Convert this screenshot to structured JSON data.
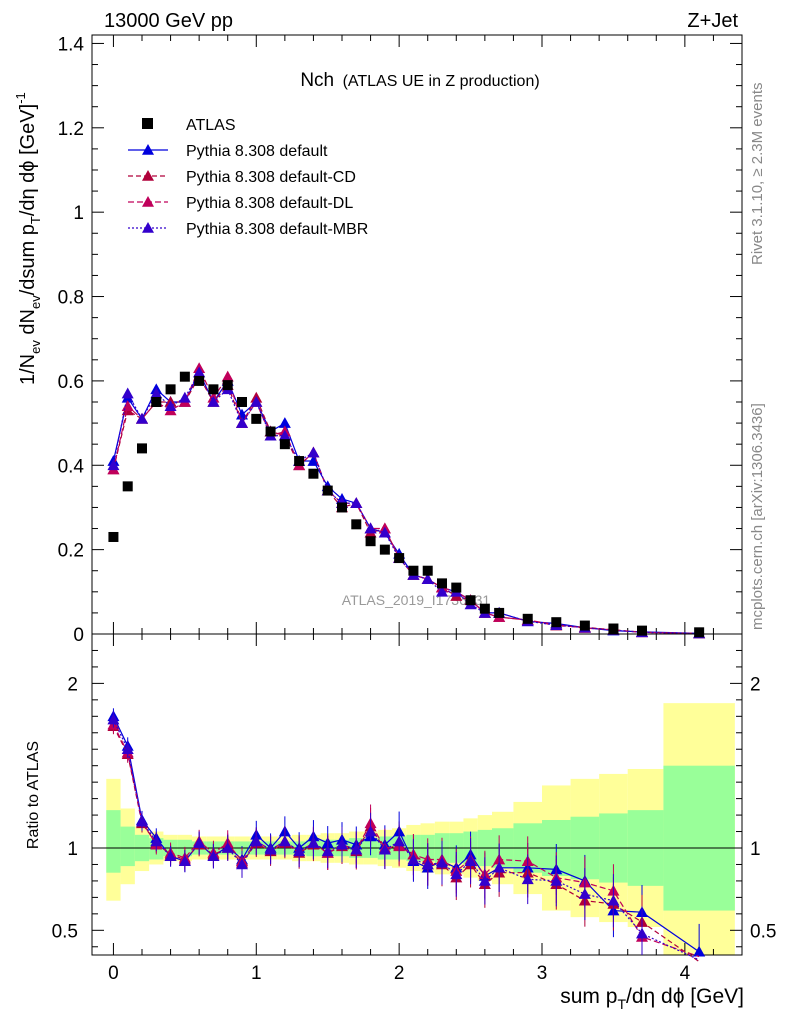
{
  "header": {
    "left": "13000 GeV pp",
    "right": "Z+Jet"
  },
  "side_labels": {
    "rivet": "Rivet 3.1.10, ≥ 2.3M events",
    "mcplots": "mcplots.cern.ch [arXiv:1306.3436]"
  },
  "analysis_tag": "ATLAS_2019_I1736531",
  "plot_title": {
    "main": "Nch",
    "sub": "(ATLAS UE in Z production)"
  },
  "axes": {
    "xlabel": "sum p_T/dη dϕ [GeV]",
    "ylabel_top": "1/N_ev dN_ev/dsum p_T/dη dϕ [GeV]^-1",
    "ylabel_bottom": "Ratio to ATLAS"
  },
  "colors": {
    "data": "#000000",
    "default": "#0000dd",
    "cd": "#b0003a",
    "dl": "#c0005a",
    "mbr": "#3300cc",
    "band_inner": "#99ff99",
    "band_outer": "#ffff99"
  },
  "chart_data": [
    {
      "type": "scatter",
      "panel": "main",
      "xlim": [
        -0.15,
        4.4
      ],
      "ylim": [
        0,
        1.42
      ],
      "x_ticks": [
        0,
        1,
        2,
        3,
        4
      ],
      "y_ticks": [
        0,
        0.2,
        0.4,
        0.6,
        0.8,
        1,
        1.2,
        1.4
      ],
      "y_tick_labels": [
        "0",
        "0.2",
        "0.4",
        "0.6",
        "0.8",
        "1",
        "1.2",
        "1.4"
      ],
      "legend": [
        "ATLAS",
        "Pythia 8.308 default",
        "Pythia 8.308 default-CD",
        "Pythia 8.308 default-DL",
        "Pythia 8.308 default-MBR"
      ],
      "legend_position": "top-left",
      "x": [
        0.0,
        0.1,
        0.2,
        0.3,
        0.4,
        0.5,
        0.6,
        0.7,
        0.8,
        0.9,
        1.0,
        1.1,
        1.2,
        1.3,
        1.4,
        1.5,
        1.6,
        1.7,
        1.8,
        1.9,
        2.0,
        2.1,
        2.2,
        2.3,
        2.4,
        2.5,
        2.6,
        2.7,
        2.9,
        3.1,
        3.3,
        3.5,
        3.7,
        4.1
      ],
      "series": [
        {
          "name": "ATLAS",
          "values": [
            0.23,
            0.35,
            0.44,
            0.55,
            0.58,
            0.61,
            0.6,
            0.58,
            0.59,
            0.55,
            0.51,
            0.48,
            0.45,
            0.41,
            0.38,
            0.34,
            0.3,
            0.26,
            0.22,
            0.2,
            0.18,
            0.15,
            0.15,
            0.12,
            0.11,
            0.08,
            0.06,
            0.05,
            0.036,
            0.028,
            0.02,
            0.013,
            0.008,
            0.004
          ]
        },
        {
          "name": "Pythia 8.308 default",
          "values": [
            0.41,
            0.56,
            0.51,
            0.58,
            0.55,
            0.55,
            0.62,
            0.55,
            0.6,
            0.52,
            0.55,
            0.48,
            0.5,
            0.41,
            0.41,
            0.35,
            0.32,
            0.31,
            0.25,
            0.24,
            0.19,
            0.14,
            0.13,
            0.11,
            0.1,
            0.08,
            0.05,
            0.05,
            0.03,
            0.025,
            0.015,
            0.008,
            0.005,
            0.0015
          ]
        },
        {
          "name": "Pythia 8.308 default-CD",
          "values": [
            0.39,
            0.53,
            0.51,
            0.55,
            0.55,
            0.55,
            0.61,
            0.55,
            0.59,
            0.5,
            0.56,
            0.48,
            0.47,
            0.4,
            0.43,
            0.34,
            0.3,
            0.31,
            0.24,
            0.25,
            0.18,
            0.14,
            0.13,
            0.11,
            0.09,
            0.08,
            0.05,
            0.04,
            0.033,
            0.02,
            0.016,
            0.01,
            0.004,
            0.0013
          ]
        },
        {
          "name": "Pythia 8.308 default-DL",
          "values": [
            0.39,
            0.54,
            0.51,
            0.55,
            0.53,
            0.55,
            0.63,
            0.56,
            0.61,
            0.5,
            0.55,
            0.47,
            0.48,
            0.4,
            0.43,
            0.34,
            0.31,
            0.31,
            0.25,
            0.25,
            0.18,
            0.14,
            0.13,
            0.11,
            0.1,
            0.08,
            0.05,
            0.04,
            0.033,
            0.022,
            0.014,
            0.01,
            0.004,
            0.0012
          ]
        },
        {
          "name": "Pythia 8.308 default-MBR",
          "values": [
            0.4,
            0.57,
            0.51,
            0.57,
            0.54,
            0.56,
            0.62,
            0.55,
            0.58,
            0.5,
            0.55,
            0.47,
            0.47,
            0.41,
            0.43,
            0.34,
            0.31,
            0.31,
            0.25,
            0.24,
            0.18,
            0.14,
            0.13,
            0.1,
            0.1,
            0.07,
            0.05,
            0.05,
            0.03,
            0.021,
            0.015,
            0.009,
            0.004,
            0.0013
          ]
        }
      ]
    },
    {
      "type": "scatter",
      "panel": "ratio",
      "xlim": [
        -0.15,
        4.4
      ],
      "ylim": [
        0.35,
        2.3
      ],
      "x_ticks": [
        0,
        1,
        2,
        3,
        4
      ],
      "y_ticks": [
        0.5,
        1,
        2
      ],
      "y_tick_labels": [
        "0.5",
        "1",
        "2"
      ],
      "reference_line": 1,
      "x": [
        0.0,
        0.1,
        0.2,
        0.3,
        0.4,
        0.5,
        0.6,
        0.7,
        0.8,
        0.9,
        1.0,
        1.1,
        1.2,
        1.3,
        1.4,
        1.5,
        1.6,
        1.7,
        1.8,
        1.9,
        2.0,
        2.1,
        2.2,
        2.3,
        2.4,
        2.5,
        2.6,
        2.7,
        2.9,
        3.1,
        3.3,
        3.5,
        3.7,
        4.1
      ],
      "bands": {
        "edges": [
          -0.05,
          0.05,
          0.15,
          0.25,
          0.35,
          0.45,
          0.55,
          0.65,
          0.75,
          0.85,
          0.95,
          1.05,
          1.15,
          1.25,
          1.35,
          1.45,
          1.55,
          1.65,
          1.75,
          1.85,
          1.95,
          2.05,
          2.15,
          2.25,
          2.35,
          2.45,
          2.55,
          2.65,
          2.8,
          3.0,
          3.2,
          3.4,
          3.6,
          3.85,
          4.35
        ],
        "inner_low": [
          0.85,
          0.89,
          0.92,
          0.93,
          0.95,
          0.95,
          0.96,
          0.96,
          0.96,
          0.96,
          0.96,
          0.96,
          0.96,
          0.96,
          0.95,
          0.95,
          0.95,
          0.94,
          0.94,
          0.93,
          0.93,
          0.92,
          0.92,
          0.91,
          0.91,
          0.9,
          0.89,
          0.88,
          0.85,
          0.83,
          0.81,
          0.79,
          0.77,
          0.62
        ],
        "inner_high": [
          1.23,
          1.13,
          1.08,
          1.06,
          1.05,
          1.05,
          1.04,
          1.04,
          1.04,
          1.04,
          1.04,
          1.04,
          1.04,
          1.04,
          1.05,
          1.05,
          1.05,
          1.06,
          1.06,
          1.07,
          1.07,
          1.08,
          1.08,
          1.09,
          1.09,
          1.1,
          1.11,
          1.12,
          1.15,
          1.17,
          1.19,
          1.21,
          1.23,
          1.5
        ],
        "outer_low": [
          0.68,
          0.78,
          0.86,
          0.9,
          0.92,
          0.92,
          0.93,
          0.93,
          0.93,
          0.93,
          0.93,
          0.93,
          0.93,
          0.92,
          0.92,
          0.91,
          0.91,
          0.9,
          0.9,
          0.89,
          0.88,
          0.86,
          0.85,
          0.84,
          0.84,
          0.82,
          0.8,
          0.78,
          0.72,
          0.62,
          0.58,
          0.55,
          0.52,
          0.35
        ],
        "outer_high": [
          1.42,
          1.24,
          1.13,
          1.1,
          1.08,
          1.08,
          1.07,
          1.07,
          1.07,
          1.07,
          1.07,
          1.07,
          1.07,
          1.08,
          1.08,
          1.09,
          1.09,
          1.1,
          1.1,
          1.11,
          1.12,
          1.14,
          1.15,
          1.16,
          1.16,
          1.18,
          1.2,
          1.22,
          1.28,
          1.38,
          1.42,
          1.45,
          1.48,
          1.88
        ]
      },
      "series": [
        {
          "name": "Pythia 8.308 default",
          "values": [
            1.8,
            1.62,
            1.17,
            1.06,
            0.95,
            0.92,
            1.03,
            0.95,
            1.01,
            0.93,
            1.08,
            1.0,
            1.1,
            1.0,
            1.07,
            1.03,
            1.05,
            1.02,
            1.07,
            1.02,
            1.1,
            0.92,
            0.88,
            0.92,
            0.88,
            0.96,
            0.83,
            0.88,
            0.88,
            0.87,
            0.8,
            0.62,
            0.61,
            0.37
          ]
        },
        {
          "name": "Pythia 8.308 default-CD",
          "values": [
            1.74,
            1.57,
            1.15,
            1.03,
            0.96,
            0.93,
            1.02,
            0.96,
            1.0,
            0.91,
            1.03,
            0.98,
            1.03,
            0.97,
            1.02,
            0.97,
            1.01,
            0.98,
            1.13,
            0.99,
            1.02,
            0.96,
            0.9,
            0.9,
            0.82,
            0.9,
            0.78,
            0.85,
            0.85,
            0.78,
            0.68,
            0.66,
            0.55,
            0.31
          ]
        },
        {
          "name": "Pythia 8.308 default-DL",
          "values": [
            1.75,
            1.58,
            1.16,
            1.02,
            0.97,
            0.94,
            1.04,
            0.97,
            1.03,
            0.92,
            1.04,
            0.99,
            1.04,
            0.98,
            1.03,
            0.97,
            1.02,
            0.99,
            1.15,
            1.0,
            1.01,
            0.96,
            0.93,
            0.93,
            0.86,
            0.93,
            0.84,
            0.93,
            0.92,
            0.82,
            0.79,
            0.74,
            0.46,
            0.34
          ]
        },
        {
          "name": "Pythia 8.308 default-MBR",
          "values": [
            1.78,
            1.6,
            1.16,
            1.04,
            0.95,
            0.92,
            1.03,
            0.95,
            1.0,
            0.9,
            1.04,
            0.99,
            1.04,
            0.98,
            1.03,
            0.98,
            1.02,
            0.99,
            1.1,
            0.99,
            1.04,
            0.93,
            0.9,
            0.91,
            0.84,
            0.92,
            0.8,
            0.88,
            0.81,
            0.8,
            0.72,
            0.68,
            0.48,
            0.32
          ]
        }
      ]
    }
  ]
}
